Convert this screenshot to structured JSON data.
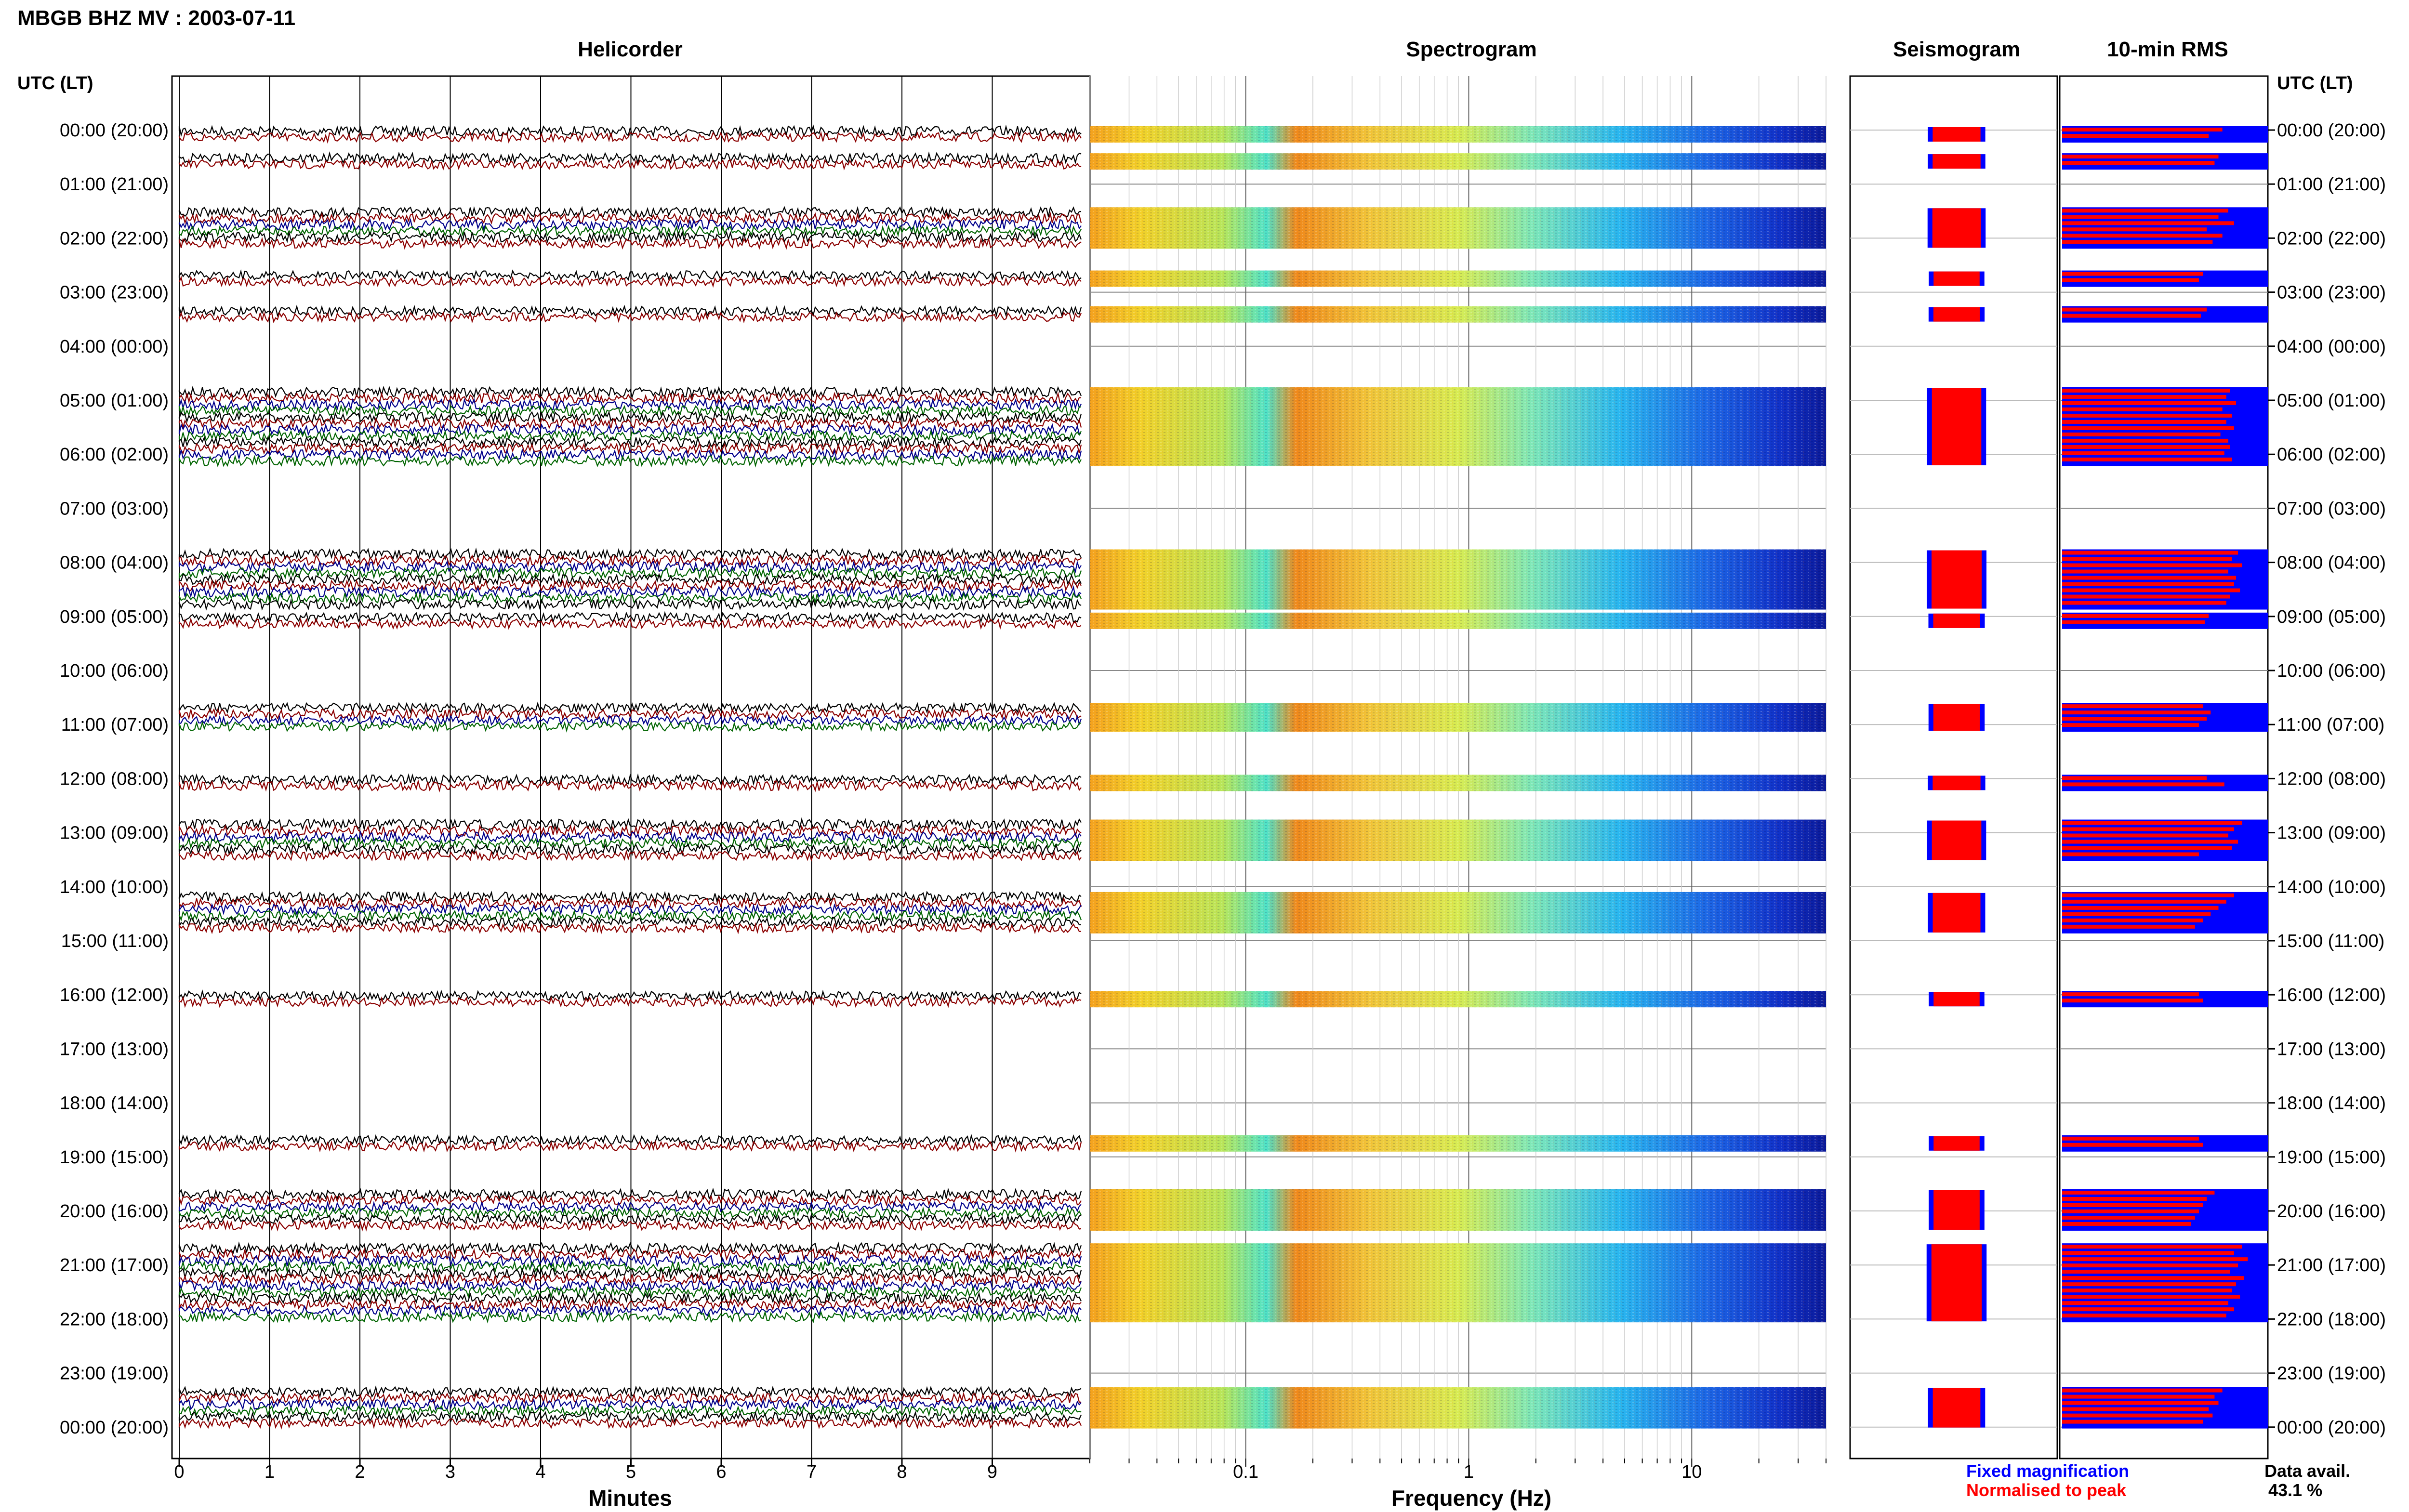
{
  "header": {
    "title": "MBGB BHZ MV : 2003-07-11"
  },
  "panels": {
    "helicorder": "Helicorder",
    "spectrogram": "Spectrogram",
    "seismogram": "Seismogram",
    "rms": "10-min RMS"
  },
  "axes": {
    "time_label": "UTC (LT)",
    "minutes_label": "Minutes",
    "frequency_label": "Frequency (Hz)"
  },
  "legend": {
    "fixed": "Fixed magnification",
    "normalised": "Normalised to peak",
    "data_avail_label": "Data avail.",
    "data_avail_value": "43.1 %"
  },
  "colors": {
    "fixed": "#0000ff",
    "normalised": "#ff0000",
    "trace_black": "#000000",
    "trace_darkred": "#8b0000",
    "trace_blue": "#00008b",
    "trace_green": "#006400"
  },
  "chart_data": {
    "type": "heatmap",
    "title": "MBGB BHZ MV : 2003-07-11",
    "hour_labels": [
      "00:00 (20:00)",
      "01:00 (21:00)",
      "02:00 (22:00)",
      "03:00 (23:00)",
      "04:00 (00:00)",
      "05:00 (01:00)",
      "06:00 (02:00)",
      "07:00 (03:00)",
      "08:00 (04:00)",
      "09:00 (05:00)",
      "10:00 (06:00)",
      "11:00 (07:00)",
      "12:00 (08:00)",
      "13:00 (09:00)",
      "14:00 (10:00)",
      "15:00 (11:00)",
      "16:00 (12:00)",
      "17:00 (13:00)",
      "18:00 (14:00)",
      "19:00 (15:00)",
      "20:00 (16:00)",
      "21:00 (17:00)",
      "22:00 (18:00)",
      "23:00 (19:00)",
      "00:00 (20:00)"
    ],
    "minute_ticks": [
      "0",
      "1",
      "2",
      "3",
      "4",
      "5",
      "6",
      "7",
      "8",
      "9"
    ],
    "frequency_ticks": [
      {
        "value": 0.1,
        "label": "0.1"
      },
      {
        "value": 1,
        "label": "1"
      },
      {
        "value": 10,
        "label": "10"
      }
    ],
    "frequency_range_hz": [
      0.02,
      40
    ],
    "minutes_range": [
      0,
      10
    ],
    "rms_blocks": [
      {
        "hour": 0,
        "rows": [
          0.82,
          0.75
        ]
      },
      {
        "hour": 0.5,
        "rows": [
          0.8,
          0.78
        ]
      },
      {
        "hour": 1.5,
        "rows": [
          0.85,
          0.8,
          0.88,
          0.74,
          0.82,
          0.77
        ]
      },
      {
        "hour": 2.67,
        "rows": [
          0.72,
          0.7
        ]
      },
      {
        "hour": 3.33,
        "rows": [
          0.74,
          0.71
        ]
      },
      {
        "hour": 4.83,
        "rows": [
          0.86,
          0.84,
          0.89,
          0.82,
          0.87,
          0.84,
          0.88,
          0.81,
          0.85,
          0.86,
          0.83,
          0.87
        ]
      },
      {
        "hour": 7.83,
        "rows": [
          0.9,
          0.87,
          0.92,
          0.85,
          0.89,
          0.88,
          0.91,
          0.86,
          0.84
        ]
      },
      {
        "hour": 9.0,
        "rows": [
          0.75,
          0.73
        ]
      },
      {
        "hour": 10.67,
        "rows": [
          0.72,
          0.76,
          0.74,
          0.7
        ]
      },
      {
        "hour": 12.0,
        "rows": [
          0.74,
          0.83
        ]
      },
      {
        "hour": 12.83,
        "rows": [
          0.92,
          0.88,
          0.85,
          0.9,
          0.87,
          0.7
        ]
      },
      {
        "hour": 14.17,
        "rows": [
          0.88,
          0.84,
          0.8,
          0.76,
          0.72,
          0.68
        ]
      },
      {
        "hour": 16.0,
        "rows": [
          0.7,
          0.72
        ]
      },
      {
        "hour": 18.67,
        "rows": [
          0.7,
          0.72
        ]
      },
      {
        "hour": 19.67,
        "rows": [
          0.78,
          0.74,
          0.72,
          0.7,
          0.68,
          0.66
        ]
      },
      {
        "hour": 20.67,
        "rows": [
          0.92,
          0.88,
          0.95,
          0.9,
          0.86,
          0.93,
          0.89,
          0.87,
          0.91,
          0.85,
          0.88,
          0.84
        ]
      },
      {
        "hour": 23.33,
        "rows": [
          0.82,
          0.78,
          0.8,
          0.75,
          0.77,
          0.72
        ]
      }
    ]
  }
}
